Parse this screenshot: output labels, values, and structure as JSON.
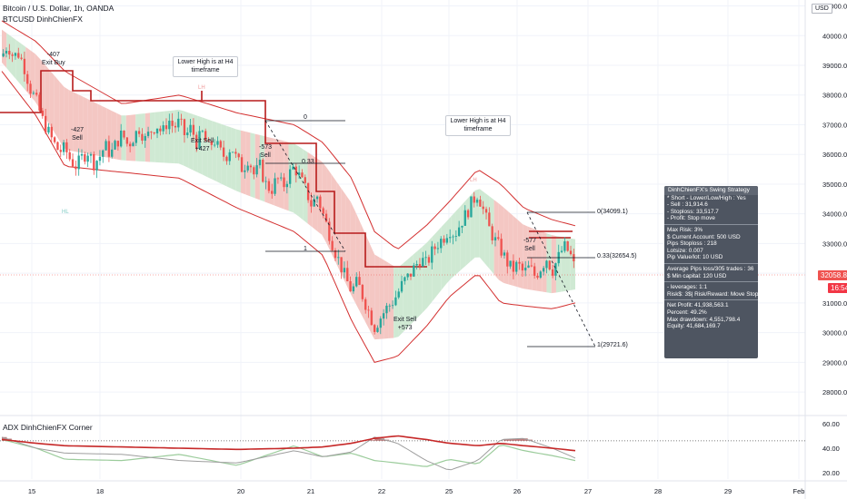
{
  "header": {
    "symbol_line": "Bitcoin / U.S. Dollar, 1h, OANDA",
    "indicator_line": "BTCUSD DinhChienFX"
  },
  "currency_label": "USD",
  "price_badges": {
    "last_price": "32058.8",
    "countdown": "16:54",
    "last_color": "#ef5350",
    "countdown_color": "#f23645"
  },
  "callouts": [
    {
      "lines": [
        "Lower High is at H4",
        "timeframe"
      ]
    },
    {
      "lines": [
        "Lower High is at H4",
        "timeframe"
      ]
    }
  ],
  "trade_labels": [
    {
      "lines": [
        "-407",
        "Exit Buy"
      ]
    },
    {
      "lines": [
        "-427",
        "Sell"
      ]
    },
    {
      "lines": [
        "Exit Sell",
        "+427"
      ]
    },
    {
      "lines": [
        "-573",
        "Sell"
      ]
    },
    {
      "lines": [
        "Exit Sell",
        "+573"
      ]
    },
    {
      "lines": [
        "-577",
        "Sell"
      ]
    }
  ],
  "fib_labels": {
    "left_0": "0",
    "left_033": "0.33",
    "left_1": "1",
    "right_0": "0(34099.1)",
    "right_033": "0.33(32654.5)",
    "right_1": "1(29721.6)"
  },
  "markers": {
    "lh1": "LH",
    "lh2": "LH",
    "hl": "HL"
  },
  "info_box": {
    "title": "DinhChienFX's Swing Strategy",
    "lines_a": [
      "* Short  - Lower/Low/High : Yes",
      "  - Sell    : 31,914.6",
      "  - Stoploss: 33,517.7",
      "  - Profit: Stop move"
    ],
    "lines_b": [
      "Max Risk: 3%",
      "$ Current Account: 500 USD",
      "Pips Stoploss : 218",
      "Lotsize: 0.007",
      "Pip Value/lot: 10 USD"
    ],
    "lines_c": [
      "Average Pips loss/305 trades : 36",
      "$ Min capital: 120 USD"
    ],
    "lines_d": [
      "- leverages: 1:1",
      "Risk$: 3$| Risk/Reward: Move Stop"
    ],
    "lines_e": [
      "Net Profit: 41,938,563.1",
      "Percent: 49.2%",
      "Max drawdown: 4,551,798.4",
      "Equity: 41,684,169.7"
    ]
  },
  "sub_pane": {
    "title": "ADX DinhChienFX Corner",
    "ticks": [
      "60.00",
      "40.00",
      "20.00"
    ]
  },
  "colors": {
    "up": "#26a69a",
    "down": "#ef5350",
    "band": "#d32f2f",
    "fill_red": "#f4c7c3",
    "fill_green": "#cfe9d3",
    "step": "#b71c1c",
    "adx_red": "#c62828",
    "adx_green": "#9ccc9c",
    "adx_gray": "#9e9e9e"
  },
  "chart_data": {
    "type": "candlestick",
    "title": "Bitcoin / U.S. Dollar, 1h, OANDA",
    "y_ticks": [
      41000,
      40000,
      39000,
      38000,
      37000,
      36000,
      35000,
      34000,
      33000,
      32000,
      31000,
      30000,
      29000,
      28000
    ],
    "y_tick_labels": [
      "41000.0",
      "40000.0",
      "39000.0",
      "38000.0",
      "37000.0",
      "36000.0",
      "35000.0",
      "34000.0",
      "33000.0",
      "32000.0",
      "31000.0",
      "30000.0",
      "29000.0",
      "28000.0"
    ],
    "x_ticks": [
      15,
      18,
      20,
      21,
      22,
      25,
      26,
      27,
      28,
      29,
      31
    ],
    "x_tick_labels": [
      "15",
      "18",
      "20",
      "21",
      "22",
      "25",
      "26",
      "27",
      "28",
      "29",
      "Feb"
    ],
    "ylim": [
      27300,
      41200
    ],
    "close_path": [
      [
        14.9,
        39300
      ],
      [
        15.0,
        39700
      ],
      [
        15.1,
        39300
      ],
      [
        15.2,
        39400
      ],
      [
        15.3,
        38900
      ],
      [
        15.4,
        38200
      ],
      [
        15.5,
        37800
      ],
      [
        15.6,
        37200
      ],
      [
        15.7,
        36800
      ],
      [
        15.8,
        36400
      ],
      [
        15.9,
        36100
      ],
      [
        16.0,
        36200
      ],
      [
        16.1,
        35800
      ],
      [
        16.2,
        35600
      ],
      [
        16.3,
        35900
      ],
      [
        16.4,
        36100
      ],
      [
        16.5,
        35700
      ],
      [
        16.6,
        35900
      ],
      [
        16.7,
        36300
      ],
      [
        16.8,
        36000
      ],
      [
        16.9,
        36400
      ],
      [
        17.0,
        36700
      ],
      [
        17.1,
        36300
      ],
      [
        17.2,
        36600
      ],
      [
        17.3,
        36900
      ],
      [
        17.4,
        36500
      ],
      [
        17.5,
        36800
      ],
      [
        17.6,
        37000
      ],
      [
        17.7,
        36700
      ],
      [
        17.8,
        37200
      ],
      [
        17.9,
        36900
      ],
      [
        18.0,
        37100
      ],
      [
        18.1,
        36600
      ],
      [
        18.2,
        36900
      ],
      [
        18.3,
        36400
      ],
      [
        18.4,
        36700
      ],
      [
        18.5,
        36200
      ],
      [
        18.6,
        36500
      ],
      [
        18.7,
        36100
      ],
      [
        18.8,
        35900
      ],
      [
        18.9,
        36300
      ],
      [
        19.0,
        35800
      ],
      [
        19.1,
        35500
      ],
      [
        19.2,
        35900
      ],
      [
        19.3,
        35300
      ],
      [
        19.4,
        35600
      ],
      [
        19.5,
        35000
      ],
      [
        19.6,
        34800
      ],
      [
        19.7,
        35200
      ],
      [
        19.8,
        34900
      ],
      [
        19.9,
        35300
      ],
      [
        20.0,
        35600
      ],
      [
        20.1,
        35200
      ],
      [
        20.2,
        34800
      ],
      [
        20.3,
        34300
      ],
      [
        20.4,
        34600
      ],
      [
        20.5,
        34000
      ],
      [
        20.6,
        33400
      ],
      [
        20.7,
        32800
      ],
      [
        20.8,
        32300
      ],
      [
        20.9,
        31800
      ],
      [
        21.0,
        31400
      ],
      [
        21.1,
        31700
      ],
      [
        21.2,
        31200
      ],
      [
        21.3,
        30700
      ],
      [
        21.4,
        30200
      ],
      [
        21.5,
        30500
      ],
      [
        21.6,
        30800
      ],
      [
        21.7,
        31000
      ],
      [
        21.8,
        31300
      ],
      [
        21.9,
        31700
      ],
      [
        22.0,
        31900
      ],
      [
        22.1,
        32200
      ],
      [
        22.2,
        32500
      ],
      [
        22.3,
        32300
      ],
      [
        22.4,
        32700
      ],
      [
        22.5,
        33000
      ],
      [
        22.6,
        33200
      ],
      [
        22.7,
        33500
      ],
      [
        22.8,
        33300
      ],
      [
        22.9,
        33700
      ],
      [
        23.0,
        34000
      ],
      [
        23.1,
        34400
      ],
      [
        23.2,
        34700
      ],
      [
        23.3,
        34100
      ],
      [
        23.4,
        33500
      ],
      [
        23.5,
        33100
      ],
      [
        23.6,
        32800
      ],
      [
        23.7,
        32400
      ],
      [
        23.8,
        32100
      ],
      [
        23.9,
        32300
      ],
      [
        24.0,
        32000
      ],
      [
        24.1,
        32200
      ],
      [
        24.2,
        31900
      ],
      [
        24.3,
        32200
      ],
      [
        24.4,
        32500
      ],
      [
        24.5,
        32100
      ],
      [
        24.6,
        32500
      ],
      [
        24.7,
        32900
      ],
      [
        24.8,
        32700
      ],
      [
        24.9,
        32100
      ]
    ],
    "overlays": [
      {
        "name": "",
        "type": "line",
        "points": [
          [
            14.9,
            40500
          ],
          [
            15.5,
            39800
          ],
          [
            16.0,
            38800
          ],
          [
            17.0,
            37700
          ],
          [
            18.0,
            38000
          ],
          [
            19.0,
            37400
          ],
          [
            20.0,
            37000
          ],
          [
            20.5,
            36400
          ],
          [
            21.0,
            35200
          ],
          [
            21.4,
            33400
          ],
          [
            21.8,
            32800
          ],
          [
            22.3,
            33600
          ],
          [
            22.7,
            34400
          ],
          [
            23.2,
            35500
          ],
          [
            23.6,
            35000
          ],
          [
            24.0,
            34200
          ],
          [
            24.5,
            33800
          ],
          [
            24.9,
            33600
          ]
        ]
      },
      {
        "name": "",
        "type": "line",
        "points": [
          [
            14.9,
            38800
          ],
          [
            15.5,
            37300
          ],
          [
            16.0,
            35600
          ],
          [
            17.0,
            35400
          ],
          [
            18.0,
            35200
          ],
          [
            19.0,
            34200
          ],
          [
            20.0,
            33400
          ],
          [
            20.5,
            32600
          ],
          [
            21.0,
            30400
          ],
          [
            21.4,
            29000
          ],
          [
            21.8,
            29200
          ],
          [
            22.3,
            30200
          ],
          [
            22.7,
            31200
          ],
          [
            23.2,
            32000
          ],
          [
            23.6,
            31000
          ],
          [
            24.0,
            30900
          ],
          [
            24.5,
            30800
          ],
          [
            24.9,
            31000
          ]
        ]
      }
    ],
    "adx": {
      "ylim": [
        15,
        65
      ],
      "red": [
        [
          14.9,
          47
        ],
        [
          15.5,
          44
        ],
        [
          16.0,
          42
        ],
        [
          17.0,
          41
        ],
        [
          18.0,
          40
        ],
        [
          19.0,
          39
        ],
        [
          20.0,
          40
        ],
        [
          20.5,
          41
        ],
        [
          21.0,
          44
        ],
        [
          21.4,
          48
        ],
        [
          21.8,
          50
        ],
        [
          22.3,
          47
        ],
        [
          22.7,
          44
        ],
        [
          23.2,
          42
        ],
        [
          23.6,
          44
        ],
        [
          24.0,
          42
        ],
        [
          24.5,
          40
        ],
        [
          24.9,
          38
        ]
      ],
      "gray": [
        [
          14.9,
          49
        ],
        [
          15.5,
          40
        ],
        [
          16.0,
          36
        ],
        [
          17.0,
          35
        ],
        [
          18.0,
          30
        ],
        [
          19.0,
          28
        ],
        [
          20.0,
          38
        ],
        [
          20.5,
          33
        ],
        [
          21.0,
          37
        ],
        [
          21.4,
          49
        ],
        [
          21.8,
          44
        ],
        [
          22.3,
          30
        ],
        [
          22.7,
          22
        ],
        [
          23.2,
          30
        ],
        [
          23.6,
          47
        ],
        [
          24.0,
          48
        ],
        [
          24.5,
          40
        ],
        [
          24.9,
          32
        ]
      ],
      "green": [
        [
          14.9,
          47
        ],
        [
          15.5,
          40
        ],
        [
          16.0,
          31
        ],
        [
          17.0,
          30
        ],
        [
          18.0,
          35
        ],
        [
          19.0,
          26
        ],
        [
          20.0,
          42
        ],
        [
          20.5,
          33
        ],
        [
          21.0,
          36
        ],
        [
          21.4,
          30
        ],
        [
          21.8,
          28
        ],
        [
          22.3,
          25
        ],
        [
          22.7,
          31
        ],
        [
          23.2,
          27
        ],
        [
          23.6,
          43
        ],
        [
          24.0,
          38
        ],
        [
          24.5,
          34
        ],
        [
          24.9,
          30
        ]
      ],
      "dotted_level": 46
    }
  }
}
